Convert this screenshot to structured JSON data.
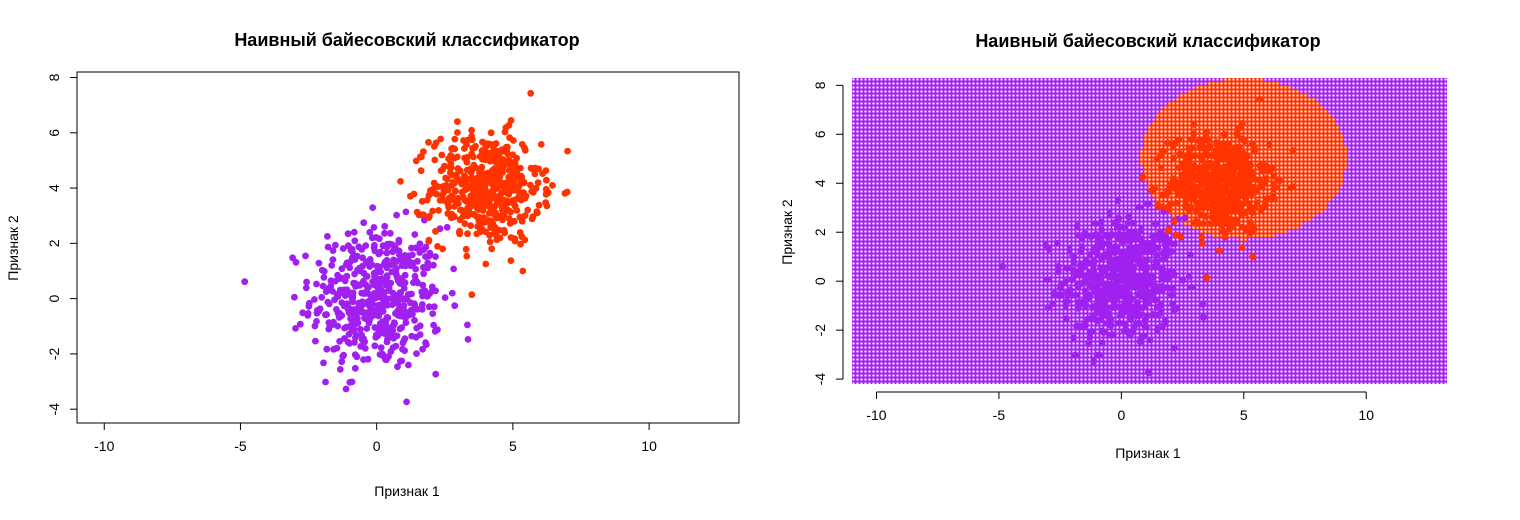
{
  "chart_data": [
    {
      "type": "scatter",
      "title": "Наивный байесовский классификатор",
      "xlabel": "Признак 1",
      "ylabel": "Признак 2",
      "xlim": [
        -11,
        13.3
      ],
      "ylim": [
        -4.5,
        8.2
      ],
      "xticks": [
        -10,
        -5,
        0,
        5,
        10
      ],
      "yticks": [
        -4,
        -2,
        0,
        2,
        4,
        6,
        8
      ],
      "xtick_labels": [
        "-10",
        "-5",
        "0",
        "5",
        "10"
      ],
      "ytick_labels": [
        "-4",
        "-2",
        "0",
        "2",
        "4",
        "6",
        "8"
      ],
      "box": true,
      "series": [
        {
          "color": "#a020f0",
          "center": [
            0,
            0
          ],
          "sd": [
            1.2,
            1.3
          ],
          "n": 500
        },
        {
          "color": "#ff3300",
          "center": [
            4,
            4
          ],
          "sd": [
            1.0,
            1.0
          ],
          "n": 500
        }
      ]
    },
    {
      "type": "scatter",
      "title": "Наивный байесовский классификатор",
      "xlabel": "Признак 1",
      "ylabel": "Признак 2",
      "xlim": [
        -11,
        13.3
      ],
      "ylim": [
        -4.2,
        8.3
      ],
      "xticks": [
        -10,
        -5,
        0,
        5,
        10
      ],
      "yticks": [
        -4,
        -2,
        0,
        2,
        4,
        6,
        8
      ],
      "xtick_labels": [
        "-10",
        "-5",
        "0",
        "5",
        "10"
      ],
      "ytick_labels": [
        "-4",
        "-2",
        "0",
        "2",
        "4",
        "6",
        "8"
      ],
      "box": false,
      "decision_region": {
        "background_color": "#a020f0",
        "region_color": "#ff3300",
        "region_center": [
          5,
          5
        ],
        "region_radius": [
          4.2,
          3.3
        ]
      },
      "series": [
        {
          "color": "#a020f0",
          "center": [
            0,
            0
          ],
          "sd": [
            1.2,
            1.3
          ],
          "n": 500
        },
        {
          "color": "#ff3300",
          "center": [
            4,
            4
          ],
          "sd": [
            1.0,
            1.0
          ],
          "n": 500
        }
      ]
    }
  ]
}
